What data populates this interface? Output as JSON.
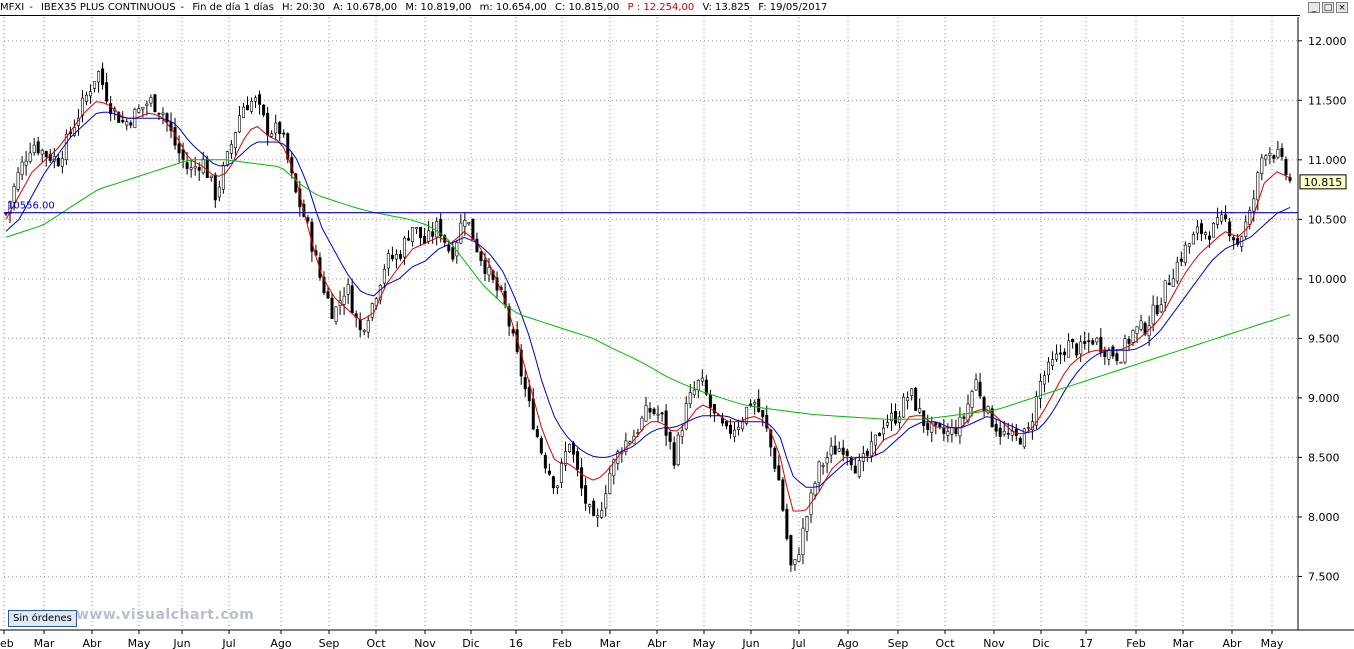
{
  "info_bar": {
    "symbol": "MFXI",
    "name": "IBEX35 PLUS CONTINUOUS",
    "timeframe": "Fin de día 1 días",
    "time": "H: 20:30",
    "open": "A: 10.678,00",
    "high": "M: 10.819,00",
    "low": "m: 10.654,00",
    "close": "C: 10.815,00",
    "p_value": "P : 12.254,00",
    "volume": "V: 13.825",
    "date": "F: 19/05/2017"
  },
  "window_controls": [
    "_",
    "□",
    "×"
  ],
  "badge": "Sin órdenes",
  "watermark": "www.visualchart.com",
  "chart_data": {
    "type": "candlestick",
    "symbol": "IBEX35 PLUS CONTINUOUS",
    "ylim": [
      7050,
      12200
    ],
    "y_ticks": [
      7500,
      8000,
      8500,
      9000,
      9500,
      10000,
      10500,
      11000,
      11500,
      12000
    ],
    "y_tick_labels": [
      "7.500",
      "8.000",
      "8.500",
      "9.000",
      "9.500",
      "10.000",
      "10.500",
      "11.000",
      "11.500",
      "12.000"
    ],
    "x_tick_labels": [
      "Feb",
      "Mar",
      "Abr",
      "May",
      "Jun",
      "Jul",
      "Ago",
      "Sep",
      "Oct",
      "Nov",
      "Dic",
      "16",
      "Feb",
      "Mar",
      "Abr",
      "May",
      "Jun",
      "Jul",
      "Ago",
      "Sep",
      "Oct",
      "Nov",
      "Dic",
      "17",
      "Feb",
      "Mar",
      "Abr",
      "May"
    ],
    "last_price": 10815,
    "last_price_label": "10.815",
    "horizontal_line": {
      "value": 10556,
      "label": "10556.00",
      "color": "#0000cc"
    },
    "colors": {
      "candles": "#000000",
      "ma_fast": "#dd0000",
      "ma_mid": "#0000cc",
      "ma_slow": "#00bb00",
      "grid": "#9a9a9a"
    },
    "series": [
      {
        "index": 0,
        "values": [
          10550,
          10900,
          11150,
          11050,
          11000,
          11250,
          11500,
          11750,
          11450,
          11300,
          11400,
          11500,
          11400,
          11100,
          10900,
          11000,
          10700,
          11050,
          11450,
          11500,
          11250,
          11250,
          10750,
          10450,
          10000,
          9700,
          9950,
          9550,
          9800,
          10150,
          10200,
          10450,
          10300,
          10450,
          10200,
          10550,
          10250,
          10000,
          9800,
          9350,
          8900,
          8500,
          8250,
          8650,
          8200,
          7900,
          8350,
          8600,
          8700,
          8900,
          8850,
          8500,
          8950,
          9150,
          8850,
          8700,
          8800,
          9000,
          8750,
          8300,
          7500,
          7950,
          8400,
          8550,
          8600,
          8400,
          8550,
          8800,
          8850,
          9050,
          8800,
          8700,
          8700,
          8800,
          9150,
          8850,
          8700,
          8650,
          8700,
          9150,
          9300,
          9450,
          9400,
          9500,
          9400,
          9350,
          9550,
          9600,
          9800,
          10050,
          10250,
          10400,
          10400,
          10500,
          10300,
          10550,
          11100,
          11050,
          10815
        ]
      },
      {
        "index": 1,
        "values": [
          10500,
          10700,
          10900,
          11000,
          11100,
          11250,
          11400,
          11500,
          11450,
          11350,
          11350,
          11400,
          11350,
          11200,
          11000,
          10950,
          10850,
          10900,
          11150,
          11300,
          11200,
          11150,
          10900,
          10450,
          10050,
          9850,
          9750,
          9650,
          9700,
          9950,
          10100,
          10250,
          10300,
          10350,
          10300,
          10400,
          10300,
          10100,
          9850,
          9500,
          9100,
          8700,
          8450,
          8450,
          8350,
          8300,
          8400,
          8550,
          8650,
          8800,
          8800,
          8700,
          8800,
          8950,
          8900,
          8800,
          8800,
          8850,
          8800,
          8550,
          8050,
          8050,
          8200,
          8400,
          8500,
          8500,
          8500,
          8650,
          8700,
          8850,
          8850,
          8750,
          8750,
          8750,
          8900,
          8900,
          8800,
          8700,
          8700,
          8850,
          9050,
          9250,
          9350,
          9400,
          9400,
          9400,
          9450,
          9550,
          9650,
          9850,
          10050,
          10200,
          10300,
          10400,
          10350,
          10450,
          10800,
          10900,
          10850
        ]
      },
      {
        "index": 2,
        "values": [
          10400,
          10500,
          10700,
          10900,
          11050,
          11200,
          11300,
          11400,
          11400,
          11350,
          11350,
          11350,
          11350,
          11300,
          11150,
          11050,
          10950,
          10950,
          11050,
          11150,
          11150,
          11150,
          11050,
          10800,
          10450,
          10250,
          10050,
          9900,
          9850,
          9950,
          10000,
          10100,
          10150,
          10250,
          10300,
          10350,
          10300,
          10200,
          10050,
          9800,
          9500,
          9100,
          8800,
          8650,
          8550,
          8500,
          8500,
          8550,
          8600,
          8700,
          8750,
          8750,
          8800,
          8850,
          8850,
          8850,
          8800,
          8800,
          8800,
          8700,
          8350,
          8250,
          8250,
          8350,
          8450,
          8500,
          8500,
          8550,
          8650,
          8750,
          8800,
          8800,
          8750,
          8750,
          8800,
          8850,
          8800,
          8750,
          8700,
          8750,
          8900,
          9100,
          9250,
          9350,
          9400,
          9400,
          9400,
          9450,
          9550,
          9700,
          9850,
          10000,
          10150,
          10250,
          10300,
          10350,
          10450,
          10550,
          10600
        ]
      },
      {
        "index": 3,
        "values": [
          10350,
          10400,
          10450,
          10550,
          10650,
          10750,
          10800,
          10850,
          10900,
          10950,
          11000,
          11000,
          11000,
          10980,
          10960,
          10940,
          10800,
          10700,
          10650,
          10600,
          10560,
          10530,
          10500,
          10450,
          10350,
          10150,
          9950,
          9800,
          9700,
          9650,
          9600,
          9550,
          9500,
          9420,
          9350,
          9270,
          9180,
          9110,
          9050,
          9000,
          8950,
          8920,
          8900,
          8880,
          8860,
          8850,
          8840,
          8830,
          8820,
          8820,
          8820,
          8840,
          8860,
          8880,
          8900,
          8950,
          9000,
          9050,
          9100,
          9150,
          9200,
          9250,
          9300,
          9350,
          9400,
          9450,
          9500,
          9550,
          9600,
          9650,
          9700
        ]
      }
    ]
  }
}
